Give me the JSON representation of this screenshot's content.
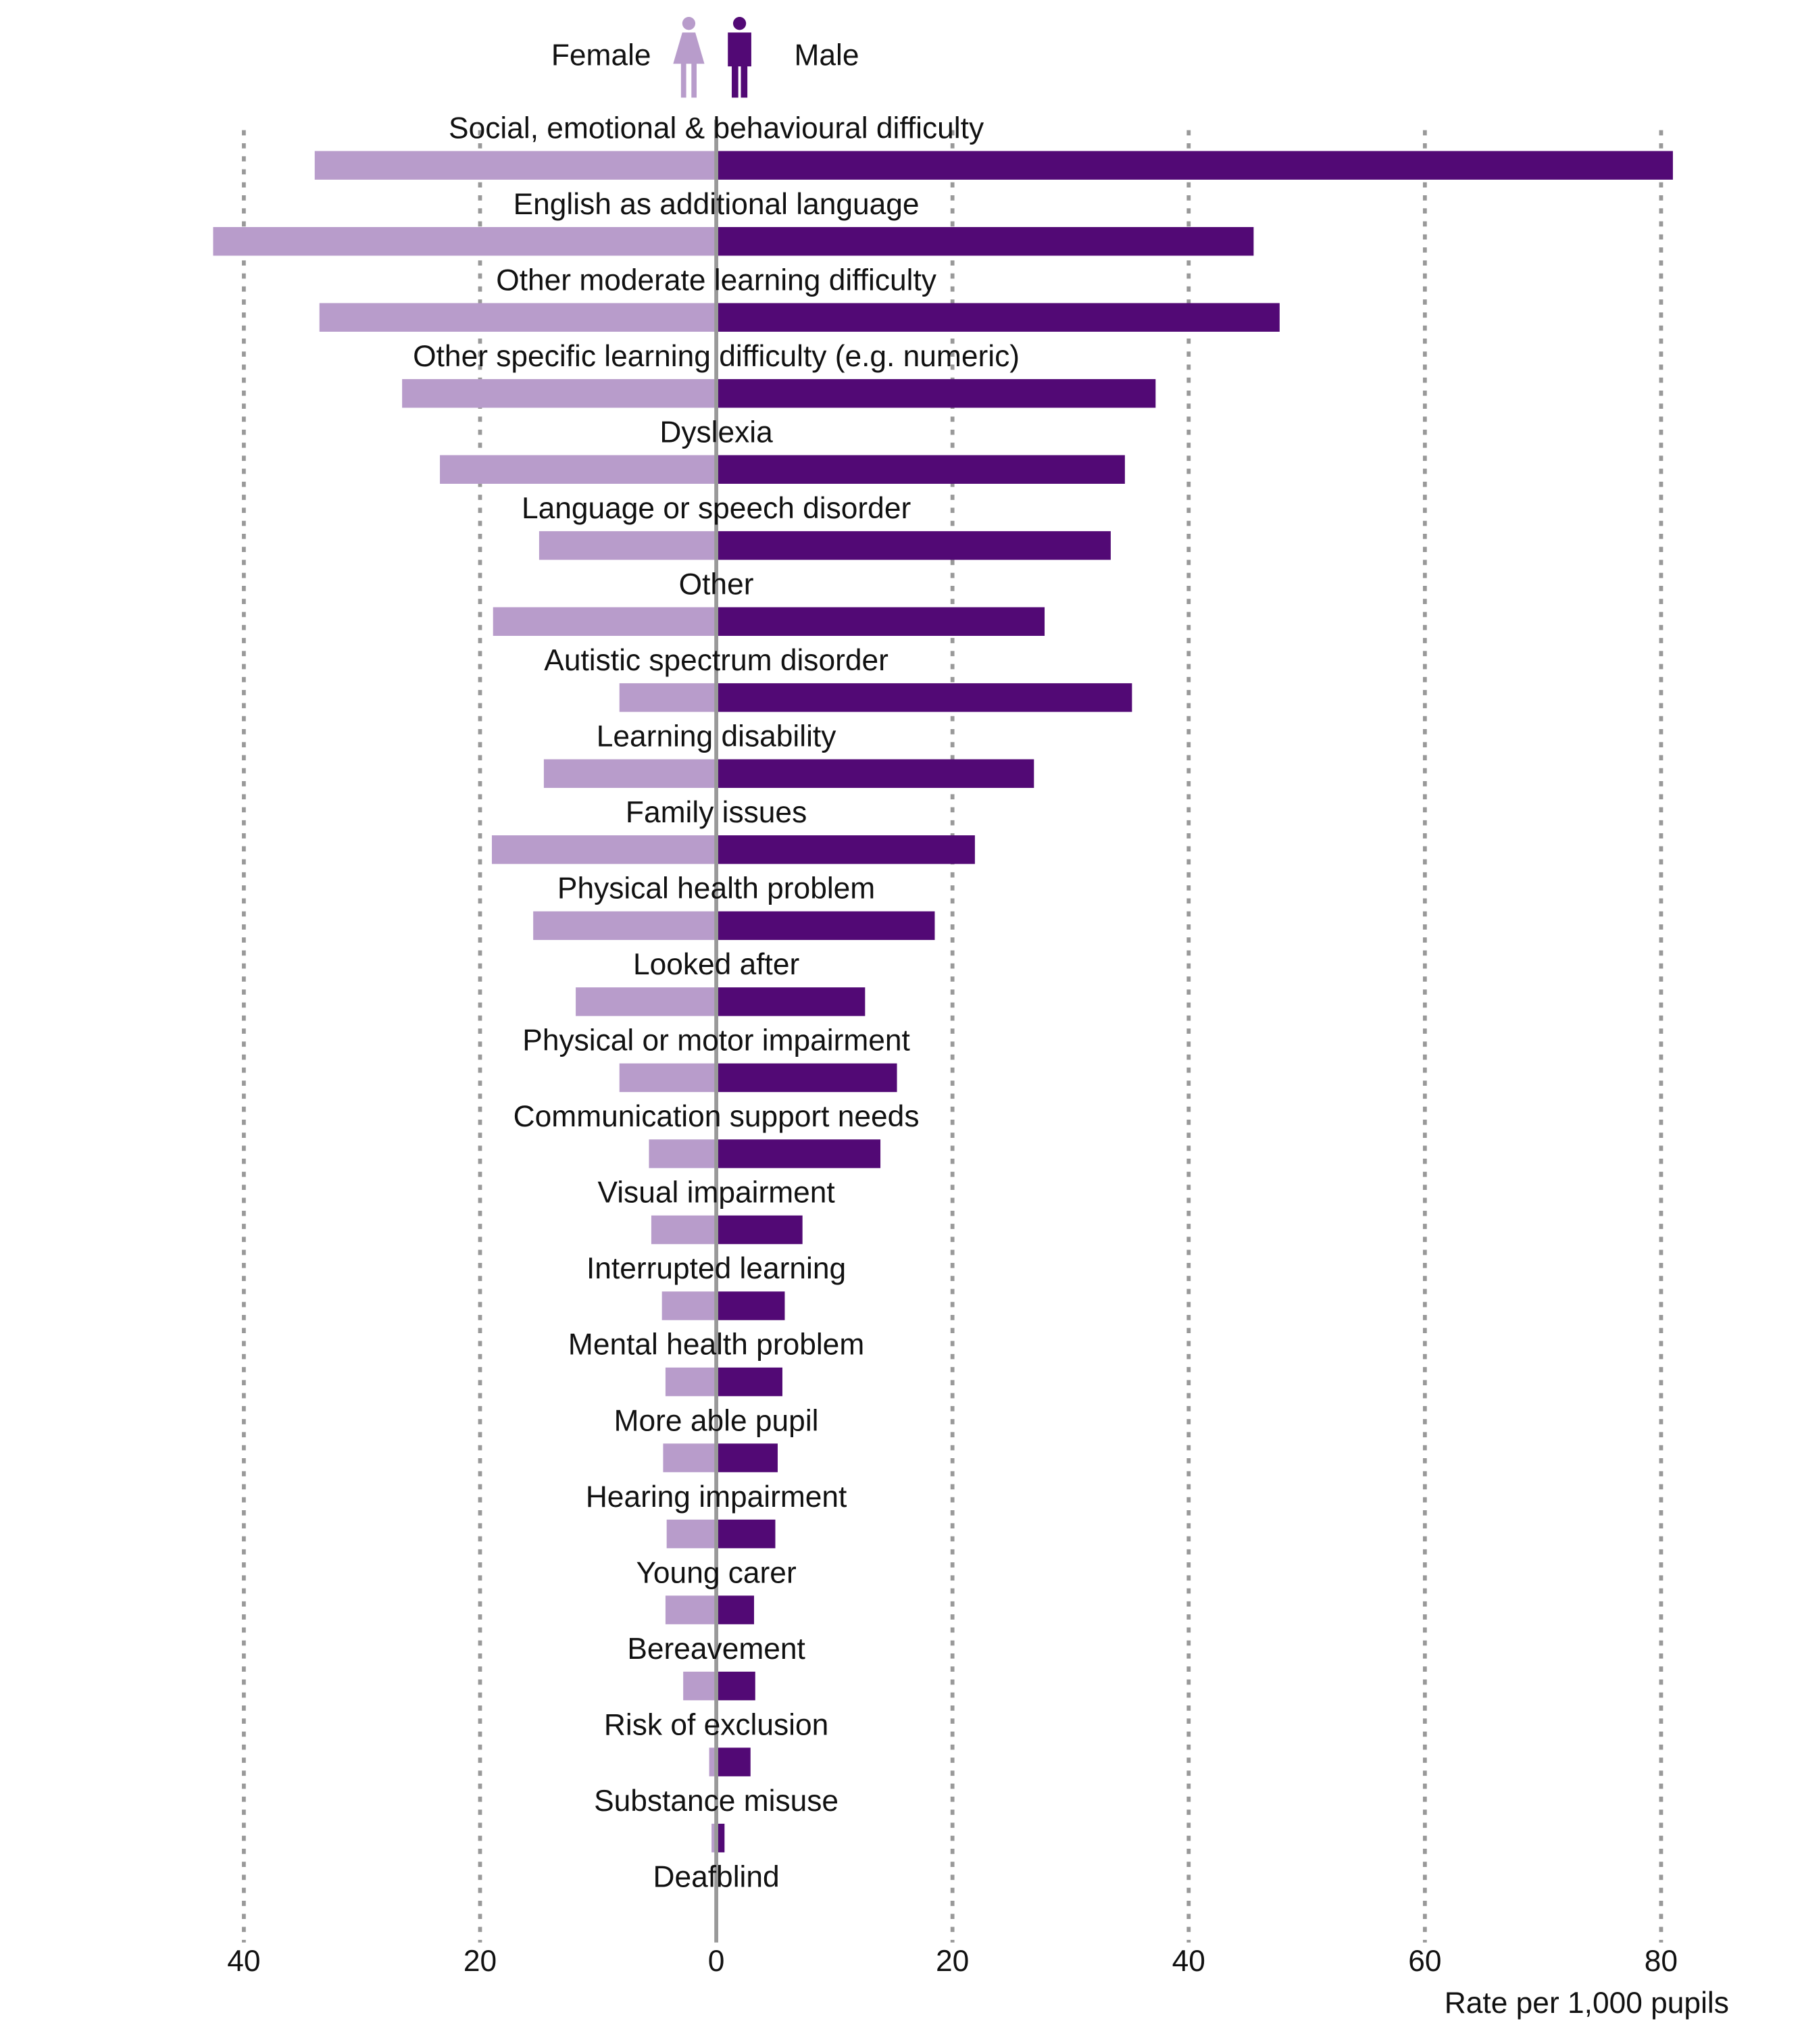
{
  "chart_data": {
    "type": "butterfly_bar",
    "x_label": "Rate per 1,000 pupils",
    "categories": [
      "Social, emotional & behavioural difficulty",
      "English as additional language",
      "Other moderate learning difficulty",
      "Other specific learning difficulty (e.g. numeric)",
      "Dyslexia",
      "Language or speech disorder",
      "Other",
      "Autistic spectrum disorder",
      "Learning disability",
      "Family issues",
      "Physical health problem",
      "Looked after",
      "Physical or motor impairment",
      "Communication support needs",
      "Visual impairment",
      "Interrupted learning",
      "Mental health problem",
      "More able pupil",
      "Hearing impairment",
      "Young carer",
      "Bereavement",
      "Risk of exclusion",
      "Substance misuse",
      "Deafblind"
    ],
    "series": [
      {
        "name": "Female",
        "color": "#b89ccb",
        "side": "left",
        "values": [
          34.0,
          42.6,
          33.6,
          26.6,
          23.4,
          15.0,
          18.9,
          8.2,
          14.6,
          19.0,
          15.5,
          11.9,
          8.2,
          5.7,
          5.5,
          4.6,
          4.3,
          4.5,
          4.2,
          4.3,
          2.8,
          0.6,
          0.4,
          0
        ]
      },
      {
        "name": "Male",
        "color": "#520975",
        "side": "right",
        "values": [
          81.0,
          45.5,
          47.7,
          37.2,
          34.6,
          33.4,
          27.8,
          35.2,
          26.9,
          21.9,
          18.5,
          12.6,
          15.3,
          13.9,
          7.3,
          5.8,
          5.6,
          5.2,
          5.0,
          3.2,
          3.3,
          2.9,
          0.7,
          0
        ]
      }
    ],
    "xlim": [
      -43,
      82
    ],
    "xticks": [
      {
        "value": -40,
        "label": "40"
      },
      {
        "value": -20,
        "label": "20"
      },
      0,
      20,
      40,
      60,
      80
    ],
    "grid": true
  }
}
